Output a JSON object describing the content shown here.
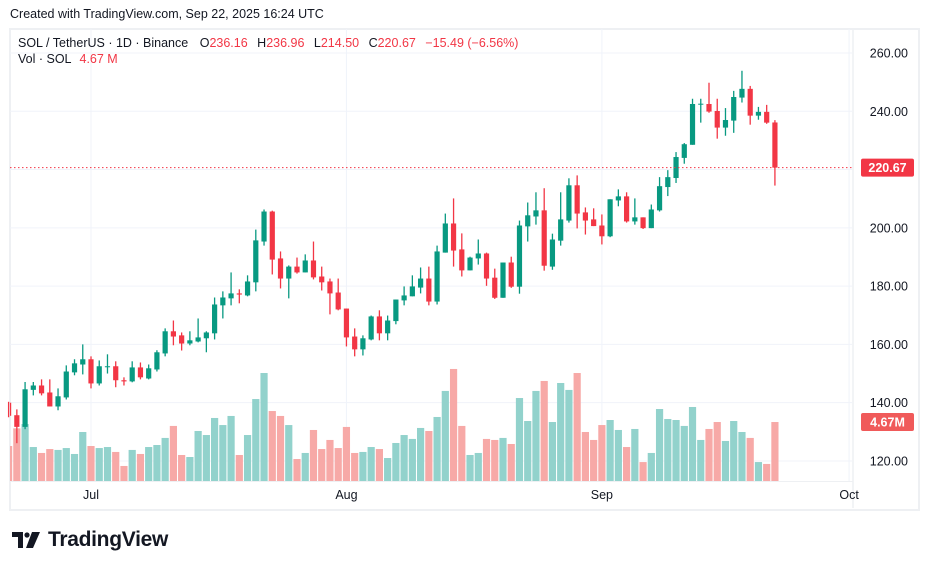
{
  "header": {
    "created_text": "Created with TradingView.com, Sep 22, 2025 16:24 UTC"
  },
  "legend": {
    "symbol": "SOL / TetherUS · 1D · Binance",
    "open_label": "O",
    "open": "236.16",
    "high_label": "H",
    "high": "236.96",
    "low_label": "L",
    "low": "214.50",
    "close_label": "C",
    "close": "220.67",
    "change": "−15.49 (−6.56%)",
    "volume_label": "Vol · SOL",
    "volume": "4.67 M"
  },
  "price_axis": {
    "ticks": [
      "260.00",
      "240.00",
      "220.00",
      "200.00",
      "180.00",
      "160.00",
      "140.00",
      "120.00"
    ],
    "hidden_ticks": [
      "220.00"
    ],
    "last_price_label": "220.67",
    "last_volume_label": "4.67M"
  },
  "time_axis": {
    "ticks": [
      {
        "label": "Jul",
        "date": "2025-07-01"
      },
      {
        "label": "Aug",
        "date": "2025-08-01"
      },
      {
        "label": "Sep",
        "date": "2025-09-01"
      },
      {
        "label": "Oct",
        "date": "2025-10-01"
      }
    ]
  },
  "colors": {
    "up": "#089981",
    "down": "#f23645",
    "volume_up": "#92d2cc",
    "volume_down": "#f7a9a7",
    "grid": "#f0f3fa",
    "last_price": "#f23645"
  },
  "logo": {
    "text": "TradingView"
  },
  "chart_data": {
    "type": "candlestick",
    "title": "SOL / TetherUS · 1D · Binance",
    "ylim": [
      113,
      268
    ],
    "volume_unit": "M",
    "grid": true,
    "fields": [
      "date",
      "open",
      "high",
      "low",
      "close",
      "volume"
    ],
    "candles": [
      [
        "2025-06-21",
        140,
        140.3,
        135,
        135.5,
        2.77
      ],
      [
        "2025-06-22",
        135.7,
        137.7,
        126.1,
        131.7,
        4.17
      ],
      [
        "2025-06-23",
        131.7,
        147.1,
        130.9,
        144.6,
        4.51
      ],
      [
        "2025-06-24",
        144.4,
        147.1,
        142.5,
        145.9,
        2.69
      ],
      [
        "2025-06-25",
        145.9,
        148,
        142.5,
        143.2,
        2.22
      ],
      [
        "2025-06-26",
        143.5,
        148,
        138.7,
        138.7,
        2.53
      ],
      [
        "2025-06-27",
        138.7,
        144.9,
        137.4,
        142.2,
        2.46
      ],
      [
        "2025-06-28",
        141.8,
        152.8,
        141.1,
        150.7,
        2.61
      ],
      [
        "2025-06-29",
        150.4,
        154.9,
        149.4,
        153.5,
        2.14
      ],
      [
        "2025-06-30",
        153.1,
        160,
        149.7,
        154.9,
        3.88
      ],
      [
        "2025-07-01",
        154.9,
        155.9,
        144.9,
        146.6,
        2.77
      ],
      [
        "2025-07-02",
        146.6,
        154.5,
        145.9,
        152.5,
        2.61
      ],
      [
        "2025-07-03",
        152.2,
        156.6,
        150,
        152.5,
        2.69
      ],
      [
        "2025-07-04",
        152.5,
        154.2,
        145.3,
        147.7,
        2.3
      ],
      [
        "2025-07-05",
        147.7,
        148.7,
        145.9,
        147.3,
        1.19
      ],
      [
        "2025-07-06",
        147.3,
        154.2,
        147.0,
        152.1,
        2.46
      ],
      [
        "2025-07-07",
        152.1,
        153.8,
        148,
        148.7,
        2.14
      ],
      [
        "2025-07-08",
        148.3,
        153.1,
        148,
        151.8,
        2.69
      ],
      [
        "2025-07-09",
        151.4,
        158,
        150.7,
        157.3,
        2.85
      ],
      [
        "2025-07-10",
        156.9,
        165.5,
        155.9,
        164.5,
        3.41
      ],
      [
        "2025-07-11",
        164.5,
        168.2,
        159.7,
        162.7,
        4.36
      ],
      [
        "2025-07-12",
        163.1,
        164.1,
        157.9,
        160.3,
        2.06
      ],
      [
        "2025-07-13",
        160.3,
        164.5,
        159.7,
        161.4,
        1.9
      ],
      [
        "2025-07-14",
        161,
        168.9,
        160.7,
        162.4,
        3.96
      ],
      [
        "2025-07-15",
        162.1,
        164.5,
        157.3,
        164.1,
        3.64
      ],
      [
        "2025-07-16",
        163.8,
        176.1,
        161.7,
        173.7,
        4.99
      ],
      [
        "2025-07-17",
        173.4,
        178.2,
        168.9,
        176.1,
        4.43
      ],
      [
        "2025-07-18",
        175.8,
        184.7,
        173.4,
        177.5,
        5.15
      ],
      [
        "2025-07-19",
        177.5,
        178.9,
        174.1,
        177.1,
        2.06
      ],
      [
        "2025-07-20",
        176.8,
        183.7,
        176.5,
        181.6,
        3.64
      ],
      [
        "2025-07-21",
        181.3,
        199.4,
        178.2,
        195.7,
        6.49
      ],
      [
        "2025-07-22",
        195.3,
        206.3,
        193.9,
        205.6,
        8.55
      ],
      [
        "2025-07-23",
        205.6,
        205.9,
        184,
        189.1,
        5.54
      ],
      [
        "2025-07-24",
        189.5,
        191.9,
        179.2,
        182.6,
        5.15
      ],
      [
        "2025-07-25",
        182.6,
        187.1,
        175.8,
        186.7,
        4.43
      ],
      [
        "2025-07-26",
        186.7,
        189.8,
        184.3,
        184.7,
        1.74
      ],
      [
        "2025-07-27",
        184.7,
        190.9,
        184.7,
        188.8,
        2.22
      ],
      [
        "2025-07-28",
        188.8,
        195.3,
        182.3,
        183,
        4.04
      ],
      [
        "2025-07-29",
        183.3,
        186.7,
        178.5,
        181.3,
        2.53
      ],
      [
        "2025-07-30",
        181.6,
        182.6,
        170.3,
        177.5,
        3.25
      ],
      [
        "2025-07-31",
        177.8,
        182.6,
        171.7,
        172,
        2.61
      ],
      [
        "2025-08-01",
        172.3,
        172.3,
        159.3,
        162.4,
        4.28
      ],
      [
        "2025-08-02",
        162.7,
        165.5,
        155.9,
        158.3,
        2.22
      ],
      [
        "2025-08-03",
        158.3,
        163.1,
        156.2,
        162.1,
        2.3
      ],
      [
        "2025-08-04",
        161.7,
        169.9,
        161.4,
        169.6,
        2.69
      ],
      [
        "2025-08-05",
        169.6,
        171.7,
        161.4,
        163.8,
        2.53
      ],
      [
        "2025-08-06",
        163.8,
        169.9,
        161.4,
        168.2,
        1.82
      ],
      [
        "2025-08-07",
        168,
        175.4,
        166.9,
        175.4,
        3.01
      ],
      [
        "2025-08-08",
        175.1,
        179.9,
        173.4,
        176.8,
        3.64
      ],
      [
        "2025-08-09",
        176.5,
        183.7,
        176.5,
        179.9,
        3.33
      ],
      [
        "2025-08-10",
        179.5,
        186.4,
        177.5,
        182.6,
        4.2
      ],
      [
        "2025-08-11",
        182.6,
        186.7,
        173.4,
        174.7,
        3.96
      ],
      [
        "2025-08-12",
        174.7,
        193.9,
        173.7,
        191.9,
        5.07
      ],
      [
        "2025-08-13",
        191.5,
        204.9,
        191.5,
        201.5,
        7.13
      ],
      [
        "2025-08-14",
        201.5,
        210.1,
        186.7,
        192.2,
        8.87
      ],
      [
        "2025-08-15",
        192.6,
        198.1,
        183.3,
        185.4,
        4.36
      ],
      [
        "2025-08-16",
        185.4,
        190.1,
        185.4,
        189.8,
        2.06
      ],
      [
        "2025-08-17",
        189.5,
        196,
        187.4,
        191.2,
        2.22
      ],
      [
        "2025-08-18",
        191.2,
        191.5,
        180.1,
        182.6,
        3.33
      ],
      [
        "2025-08-19",
        182.9,
        186,
        175.6,
        176,
        3.25
      ],
      [
        "2025-08-20",
        176,
        188.1,
        176,
        188.1,
        3.41
      ],
      [
        "2025-08-21",
        188.1,
        190.1,
        179.4,
        179.8,
        2.93
      ],
      [
        "2025-08-22",
        179.8,
        202.5,
        177.4,
        200.8,
        6.57
      ],
      [
        "2025-08-23",
        200.5,
        208.7,
        195.3,
        204.3,
        4.75
      ],
      [
        "2025-08-24",
        203.9,
        212.2,
        201.1,
        206,
        7.13
      ],
      [
        "2025-08-25",
        206,
        213.6,
        185.3,
        187,
        7.92
      ],
      [
        "2025-08-26",
        186.7,
        198,
        185.6,
        196,
        4.67
      ],
      [
        "2025-08-27",
        195.6,
        212.2,
        193.9,
        202.9,
        7.76
      ],
      [
        "2025-08-28",
        202.5,
        217,
        201.8,
        214.6,
        7.21
      ],
      [
        "2025-08-29",
        214.6,
        218,
        199.8,
        204.9,
        8.55
      ],
      [
        "2025-08-30",
        205.3,
        207,
        197.7,
        202.5,
        3.88
      ],
      [
        "2025-08-31",
        202.9,
        206.7,
        200.6,
        200.6,
        3.25
      ],
      [
        "2025-09-01",
        200.8,
        204.6,
        194.3,
        197.1,
        4.43
      ],
      [
        "2025-09-02",
        197.1,
        209.8,
        196.8,
        209.8,
        4.83
      ],
      [
        "2025-09-03",
        209.4,
        213.2,
        207.4,
        210.8,
        4.04
      ],
      [
        "2025-09-04",
        210.8,
        212.2,
        201.8,
        202.2,
        2.69
      ],
      [
        "2025-09-05",
        202.2,
        210.1,
        201.1,
        203.6,
        4.12
      ],
      [
        "2025-09-06",
        203.6,
        203.6,
        199.6,
        199.9,
        1.5
      ],
      [
        "2025-09-07",
        199.9,
        208,
        199.9,
        206.3,
        2.22
      ],
      [
        "2025-09-08",
        206,
        217.4,
        205.6,
        214.3,
        5.7
      ],
      [
        "2025-09-09",
        214,
        219.8,
        210.9,
        217.4,
        4.91
      ],
      [
        "2025-09-10",
        217.1,
        226,
        215.4,
        224.3,
        4.83
      ],
      [
        "2025-09-11",
        224,
        229.1,
        222,
        228.7,
        4.36
      ],
      [
        "2025-09-12",
        228.5,
        244.3,
        228.5,
        242.5,
        5.86
      ],
      [
        "2025-09-13",
        242.3,
        244.3,
        236.1,
        242.6,
        3.25
      ],
      [
        "2025-09-14",
        242.5,
        249.8,
        239.5,
        239.9,
        4.12
      ],
      [
        "2025-09-15",
        240.1,
        244.3,
        230.6,
        234.4,
        4.67
      ],
      [
        "2025-09-16",
        234.4,
        241.1,
        231.6,
        237,
        3.17
      ],
      [
        "2025-09-17",
        236.8,
        247,
        232.6,
        244.9,
        4.75
      ],
      [
        "2025-09-18",
        244.7,
        253.9,
        243,
        247.7,
        3.88
      ],
      [
        "2025-09-19",
        247.7,
        248.7,
        235.4,
        238.5,
        3.41
      ],
      [
        "2025-09-20",
        238.5,
        241.5,
        237.1,
        239.8,
        1.5
      ],
      [
        "2025-09-21",
        239.8,
        242.2,
        235.7,
        236.1,
        1.35
      ],
      [
        "2025-09-22",
        236.16,
        236.96,
        214.5,
        220.67,
        4.67
      ]
    ]
  }
}
